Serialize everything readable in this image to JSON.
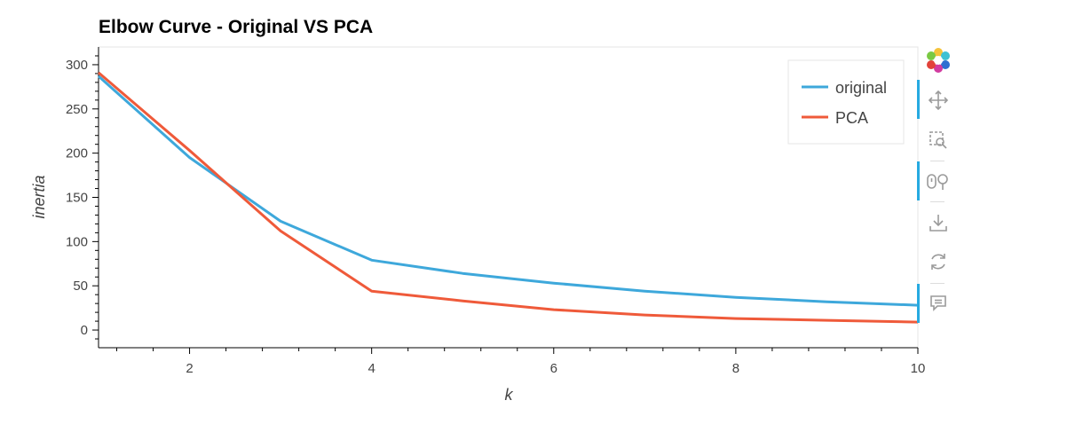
{
  "chart_data": {
    "type": "line",
    "title": "Elbow Curve - Original VS PCA",
    "xlabel": "k",
    "ylabel": "inertia",
    "xlim": [
      1,
      10
    ],
    "ylim": [
      -20,
      320
    ],
    "xticks": [
      2,
      4,
      6,
      8,
      10
    ],
    "yticks": [
      0,
      50,
      100,
      150,
      200,
      250,
      300
    ],
    "legend_position": "top-right",
    "grid": false,
    "series": [
      {
        "name": "original",
        "color": "#3ea8db",
        "x": [
          1,
          2,
          3,
          4,
          5,
          6,
          7,
          8,
          9,
          10
        ],
        "y": [
          287,
          195,
          123,
          79,
          64,
          53,
          44,
          37,
          32,
          28
        ]
      },
      {
        "name": "PCA",
        "color": "#ef5a3a",
        "x": [
          1,
          2,
          3,
          4,
          5,
          6,
          7,
          8,
          9,
          10
        ],
        "y": [
          291,
          203,
          112,
          44,
          33,
          23,
          17,
          13,
          11,
          9
        ]
      }
    ]
  },
  "toolbar": {
    "tools": [
      {
        "name": "bokeh-logo-icon",
        "active": false
      },
      {
        "name": "pan-icon",
        "active": true
      },
      {
        "name": "box-zoom-icon",
        "active": false
      },
      {
        "name": "wheel-zoom-icon",
        "active": true
      },
      {
        "name": "save-icon",
        "active": false
      },
      {
        "name": "reset-icon",
        "active": false
      },
      {
        "name": "hover-icon",
        "active": true
      }
    ]
  }
}
